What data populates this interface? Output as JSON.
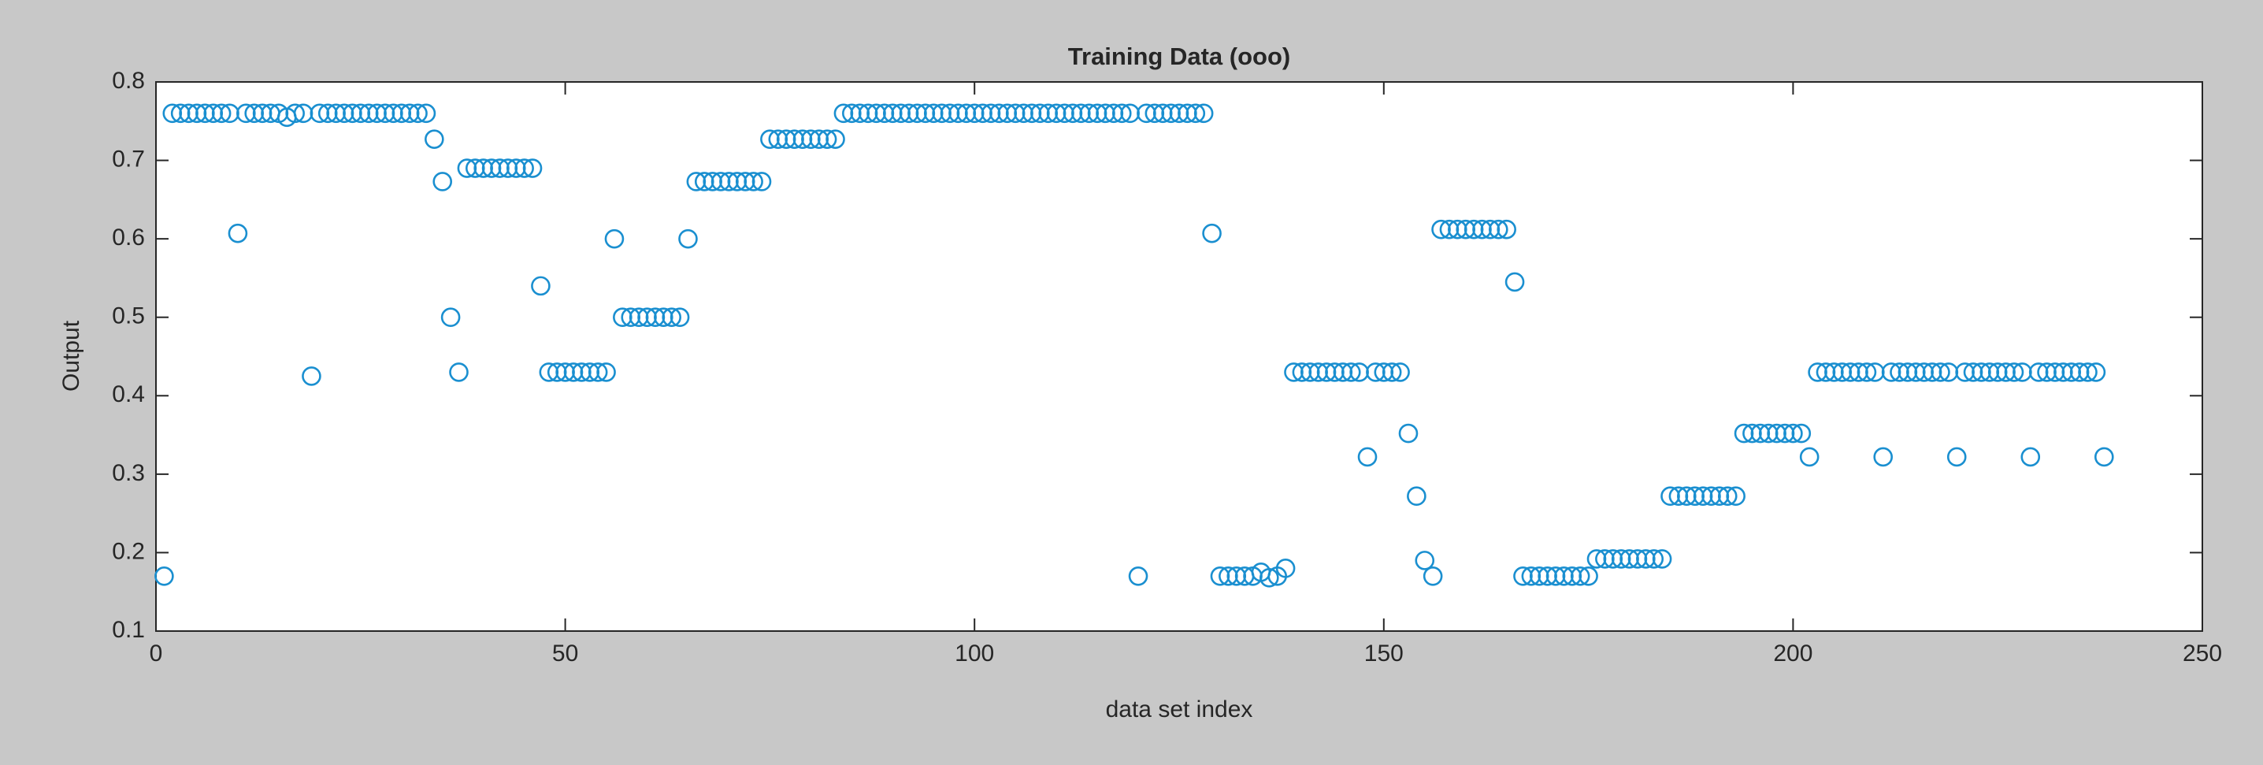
{
  "chart_data": {
    "type": "scatter",
    "title": "Training Data (ooo)",
    "xlabel": "data set index",
    "ylabel": "Output",
    "series": [
      {
        "name": "Training Data",
        "color": "#1a8fd0",
        "x": [
          1,
          2,
          3,
          4,
          5,
          6,
          7,
          8,
          9,
          10,
          11,
          12,
          13,
          14,
          15,
          16,
          17,
          18,
          19,
          20,
          21,
          22,
          23,
          24,
          25,
          26,
          27,
          28,
          29,
          30,
          31,
          32,
          33,
          34,
          35,
          36,
          37,
          38,
          39,
          40,
          41,
          42,
          43,
          44,
          45,
          46,
          47,
          48,
          49,
          50,
          51,
          52,
          53,
          54,
          55,
          56,
          57,
          58,
          59,
          60,
          61,
          62,
          63,
          64,
          65,
          66,
          67,
          68,
          69,
          70,
          71,
          72,
          73,
          74,
          75,
          76,
          77,
          78,
          79,
          80,
          81,
          82,
          83,
          84,
          85,
          86,
          87,
          88,
          89,
          90,
          91,
          92,
          93,
          94,
          95,
          96,
          97,
          98,
          99,
          100,
          101,
          102,
          103,
          104,
          105,
          106,
          107,
          108,
          109,
          110,
          111,
          112,
          113,
          114,
          115,
          116,
          117,
          118,
          119,
          120,
          121,
          122,
          123,
          124,
          125,
          126,
          127,
          128,
          129,
          130,
          131,
          132,
          133,
          134,
          135,
          136,
          137,
          138,
          139,
          140,
          141,
          142,
          143,
          144,
          145,
          146,
          147,
          148,
          149,
          150,
          151,
          152,
          153,
          154,
          155,
          156,
          157,
          158,
          159,
          160,
          161,
          162,
          163,
          164,
          165,
          166,
          167,
          168,
          169,
          170,
          171,
          172,
          173,
          174,
          175,
          176,
          177,
          178,
          179,
          180,
          181,
          182,
          183,
          184,
          185,
          186,
          187,
          188,
          189,
          190,
          191,
          192,
          193,
          194,
          195,
          196,
          197,
          198,
          199,
          200,
          201,
          202,
          203,
          204,
          205,
          206,
          207,
          208,
          209,
          210,
          211,
          212,
          213,
          214,
          215,
          216,
          217,
          218,
          219,
          220,
          221,
          222,
          223,
          224,
          225,
          226,
          227,
          228,
          229,
          230,
          231,
          232,
          233,
          234,
          235,
          236,
          237,
          238
        ],
        "values": [
          0.17,
          0.76,
          0.76,
          0.76,
          0.76,
          0.76,
          0.76,
          0.76,
          0.76,
          0.607,
          0.76,
          0.76,
          0.76,
          0.76,
          0.76,
          0.755,
          0.76,
          0.76,
          0.425,
          0.76,
          0.76,
          0.76,
          0.76,
          0.76,
          0.76,
          0.76,
          0.76,
          0.76,
          0.76,
          0.76,
          0.76,
          0.76,
          0.76,
          0.727,
          0.673,
          0.5,
          0.43,
          0.69,
          0.69,
          0.69,
          0.69,
          0.69,
          0.69,
          0.69,
          0.69,
          0.69,
          0.54,
          0.43,
          0.43,
          0.43,
          0.43,
          0.43,
          0.43,
          0.43,
          0.43,
          0.6,
          0.5,
          0.5,
          0.5,
          0.5,
          0.5,
          0.5,
          0.5,
          0.5,
          0.6,
          0.673,
          0.673,
          0.673,
          0.673,
          0.673,
          0.673,
          0.673,
          0.673,
          0.673,
          0.727,
          0.727,
          0.727,
          0.727,
          0.727,
          0.727,
          0.727,
          0.727,
          0.727,
          0.76,
          0.76,
          0.76,
          0.76,
          0.76,
          0.76,
          0.76,
          0.76,
          0.76,
          0.76,
          0.76,
          0.76,
          0.76,
          0.76,
          0.76,
          0.76,
          0.76,
          0.76,
          0.76,
          0.76,
          0.76,
          0.76,
          0.76,
          0.76,
          0.76,
          0.76,
          0.76,
          0.76,
          0.76,
          0.76,
          0.76,
          0.76,
          0.76,
          0.76,
          0.76,
          0.76,
          0.17,
          0.76,
          0.76,
          0.76,
          0.76,
          0.76,
          0.76,
          0.76,
          0.76,
          0.607,
          0.17,
          0.17,
          0.17,
          0.17,
          0.17,
          0.175,
          0.168,
          0.17,
          0.18,
          0.43,
          0.43,
          0.43,
          0.43,
          0.43,
          0.43,
          0.43,
          0.43,
          0.43,
          0.322,
          0.43,
          0.43,
          0.43,
          0.43,
          0.352,
          0.272,
          0.19,
          0.17,
          0.612,
          0.612,
          0.612,
          0.612,
          0.612,
          0.612,
          0.612,
          0.612,
          0.612,
          0.545,
          0.17,
          0.17,
          0.17,
          0.17,
          0.17,
          0.17,
          0.17,
          0.17,
          0.17,
          0.192,
          0.192,
          0.192,
          0.192,
          0.192,
          0.192,
          0.192,
          0.192,
          0.192,
          0.272,
          0.272,
          0.272,
          0.272,
          0.272,
          0.272,
          0.272,
          0.272,
          0.272,
          0.352,
          0.352,
          0.352,
          0.352,
          0.352,
          0.352,
          0.352,
          0.352,
          0.322,
          0.43,
          0.43,
          0.43,
          0.43,
          0.43,
          0.43,
          0.43,
          0.43,
          0.322,
          0.43,
          0.43,
          0.43,
          0.43,
          0.43,
          0.43,
          0.43,
          0.43,
          0.322,
          0.43,
          0.43,
          0.43,
          0.43,
          0.43,
          0.43,
          0.43,
          0.43,
          0.322,
          0.43,
          0.43,
          0.43,
          0.43,
          0.43,
          0.43,
          0.43,
          0.43,
          0.322
        ]
      }
    ],
    "xlim": [
      0,
      250
    ],
    "xticks": [
      0,
      50,
      100,
      150,
      200,
      250
    ],
    "ylim": [
      0.1,
      0.8
    ],
    "yticks": [
      0.1,
      0.2,
      0.3,
      0.4,
      0.5,
      0.6,
      0.7,
      0.8
    ],
    "grid": false,
    "box": true
  }
}
